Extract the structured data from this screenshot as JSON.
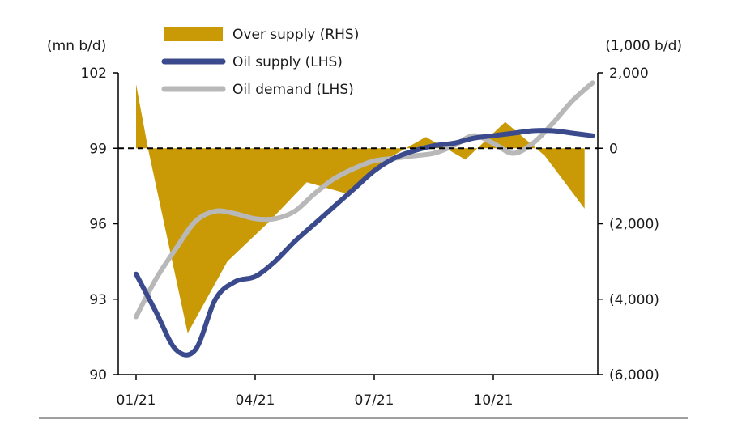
{
  "chart_data": {
    "type": "line",
    "title": "",
    "left_unit": "(mn b/d)",
    "right_unit": "(1,000 b/d)",
    "x_tick_labels": [
      "01/21",
      "04/21",
      "07/21",
      "10/21"
    ],
    "x_tick_months": [
      1,
      4,
      7,
      10
    ],
    "left_axis": {
      "ylim": [
        90,
        102
      ],
      "ticks": [
        102,
        99,
        96,
        93,
        90
      ],
      "tick_labels": [
        "102",
        "99",
        "96",
        "93",
        "90"
      ]
    },
    "right_axis": {
      "ylim": [
        -6000,
        2000
      ],
      "ticks": [
        2000,
        0,
        -2000,
        -4000,
        -6000
      ],
      "tick_labels": [
        "2,000",
        "0",
        "(2,000)",
        "(4,000)",
        "(6,000)"
      ]
    },
    "zero_reference": "dashed line at 0 (RHS)",
    "colors": {
      "over_supply": "#C99A06",
      "oil_supply": "#3B4A8C",
      "oil_demand": "#B8B8B8",
      "axis": "#000000"
    },
    "series": [
      {
        "name": "Over supply (RHS)",
        "axis": "right",
        "style": "area",
        "x": [
          1.0,
          1.3,
          2.3,
          3.3,
          4.3,
          5.3,
          6.3,
          7.3,
          8.3,
          9.3,
          10.3,
          11.3,
          12.3
        ],
        "values": [
          1700,
          0,
          -4900,
          -3000,
          -2000,
          -900,
          -1200,
          -300,
          300,
          -300,
          700,
          -200,
          -1600
        ]
      },
      {
        "name": "Oil supply (LHS)",
        "axis": "left",
        "style": "line",
        "x": [
          1.0,
          1.5,
          2.0,
          2.5,
          3.0,
          3.5,
          4.0,
          4.5,
          5.0,
          5.5,
          6.0,
          6.5,
          7.0,
          7.5,
          8.0,
          8.5,
          9.0,
          9.5,
          10.0,
          10.5,
          11.0,
          11.5,
          12.0,
          12.5
        ],
        "values": [
          94.0,
          92.5,
          91.0,
          91.0,
          93.0,
          93.7,
          93.9,
          94.5,
          95.3,
          96.0,
          96.7,
          97.4,
          98.1,
          98.6,
          98.9,
          99.1,
          99.2,
          99.4,
          99.5,
          99.6,
          99.7,
          99.7,
          99.6,
          99.5
        ]
      },
      {
        "name": "Oil demand (LHS)",
        "axis": "left",
        "style": "line",
        "x": [
          1.0,
          1.5,
          2.0,
          2.5,
          3.0,
          3.5,
          4.0,
          4.5,
          5.0,
          5.5,
          6.0,
          6.5,
          7.0,
          7.5,
          8.0,
          8.5,
          9.0,
          9.5,
          10.0,
          10.5,
          11.0,
          11.5,
          12.0,
          12.5
        ],
        "values": [
          92.3,
          93.8,
          95.0,
          96.1,
          96.5,
          96.4,
          96.2,
          96.2,
          96.5,
          97.2,
          97.8,
          98.2,
          98.5,
          98.6,
          98.7,
          98.8,
          99.1,
          99.5,
          99.2,
          98.8,
          99.2,
          100.0,
          100.9,
          101.6
        ]
      }
    ],
    "legend": {
      "placement": "top-center",
      "entries": [
        "Over supply (RHS)",
        "Oil supply (LHS)",
        "Oil demand (LHS)"
      ]
    }
  }
}
